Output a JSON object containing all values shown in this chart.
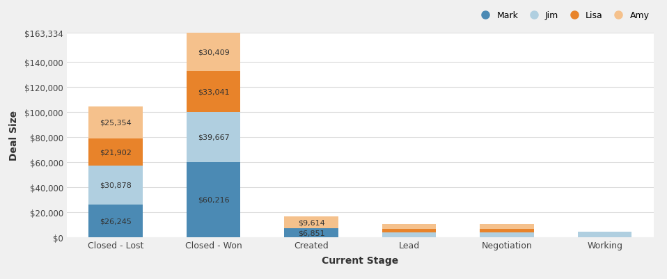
{
  "categories": [
    "Closed - Lost",
    "Closed - Won",
    "Created",
    "Lead",
    "Negotiation",
    "Working"
  ],
  "series": {
    "Mark": [
      26245,
      60216,
      6851,
      0,
      0,
      0
    ],
    "Jim": [
      30878,
      39667,
      0,
      3500,
      3500,
      4500
    ],
    "Lisa": [
      21902,
      33041,
      0,
      3000,
      3200,
      0
    ],
    "Amy": [
      25354,
      30409,
      9614,
      4000,
      3500,
      0
    ]
  },
  "labels": {
    "Mark": [
      "$26,245",
      "$60,216",
      "$6,851",
      "",
      "",
      ""
    ],
    "Jim": [
      "$30,878",
      "$39,667",
      "",
      "",
      "",
      ""
    ],
    "Lisa": [
      "$21,902",
      "$33,041",
      "",
      "",
      "",
      ""
    ],
    "Amy": [
      "$25,354",
      "$30,409",
      "$9,614",
      "",
      "",
      ""
    ]
  },
  "colors": {
    "Mark": "#4b8ab4",
    "Jim": "#b0cfe0",
    "Lisa": "#e8832a",
    "Amy": "#f5c18c"
  },
  "xlabel": "Current Stage",
  "ylabel": "Deal Size",
  "ylim_max": 163334,
  "yticks": [
    0,
    20000,
    40000,
    60000,
    80000,
    100000,
    120000,
    140000,
    163334
  ],
  "ytick_labels": [
    "$0",
    "$20,000",
    "$40,000",
    "$60,000",
    "$80,000",
    "$100,000",
    "$120,000",
    "$140,000",
    "$163,334"
  ],
  "background_color": "#f0f0f0",
  "plot_background": "#ffffff",
  "bar_width": 0.55,
  "legend_order": [
    "Mark",
    "Jim",
    "Lisa",
    "Amy"
  ]
}
